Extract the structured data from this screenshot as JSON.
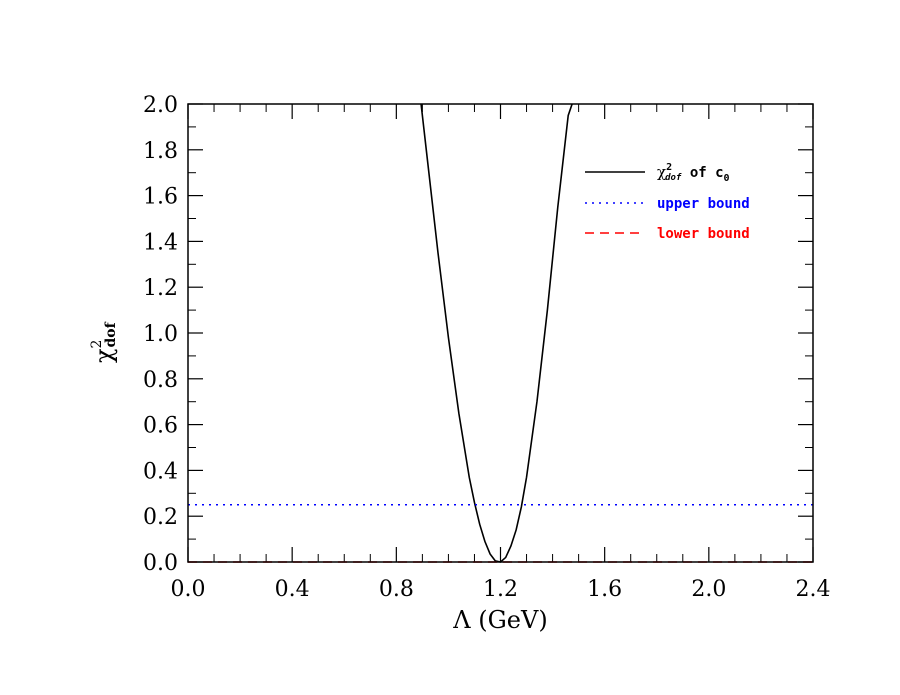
{
  "chart_data": {
    "type": "line",
    "xlabel": "Λ  (GeV)",
    "ylabel": {
      "base": "χ",
      "sup": "2",
      "sub": "dof"
    },
    "xlim": [
      0.0,
      2.4
    ],
    "ylim": [
      0.0,
      2.0
    ],
    "x_ticks": [
      "0.0",
      "0.4",
      "0.8",
      "1.2",
      "1.6",
      "2.0",
      "2.4"
    ],
    "y_ticks": [
      "0.0",
      "0.2",
      "0.4",
      "0.6",
      "0.8",
      "1.0",
      "1.2",
      "1.4",
      "1.6",
      "1.8",
      "2.0"
    ],
    "grid": false,
    "legend_position": "top-right",
    "series": [
      {
        "name": "χ²dof of c0",
        "label": {
          "base": "χ",
          "sup": "2",
          "sub": "dof",
          "mid": " of c",
          "idx": "0"
        },
        "color": "#000000",
        "style": "solid",
        "x": [
          0.895,
          0.92,
          0.96,
          1.0,
          1.04,
          1.08,
          1.1,
          1.12,
          1.14,
          1.16,
          1.18,
          1.2,
          1.22,
          1.24,
          1.26,
          1.28,
          1.3,
          1.34,
          1.38,
          1.42,
          1.46,
          1.475
        ],
        "y": [
          2.0,
          1.75,
          1.35,
          0.98,
          0.65,
          0.37,
          0.26,
          0.165,
          0.09,
          0.035,
          0.005,
          0.0,
          0.02,
          0.07,
          0.14,
          0.24,
          0.37,
          0.7,
          1.1,
          1.55,
          1.95,
          2.0
        ]
      },
      {
        "name": "upper bound",
        "color": "#0000ff",
        "style": "dotted",
        "x": [
          0.0,
          2.4
        ],
        "y": [
          0.25,
          0.25
        ]
      },
      {
        "name": "lower bound",
        "color": "#ff0000",
        "style": "dashed",
        "x": [
          0.0,
          2.4
        ],
        "y": [
          0.0,
          0.0
        ]
      }
    ]
  }
}
